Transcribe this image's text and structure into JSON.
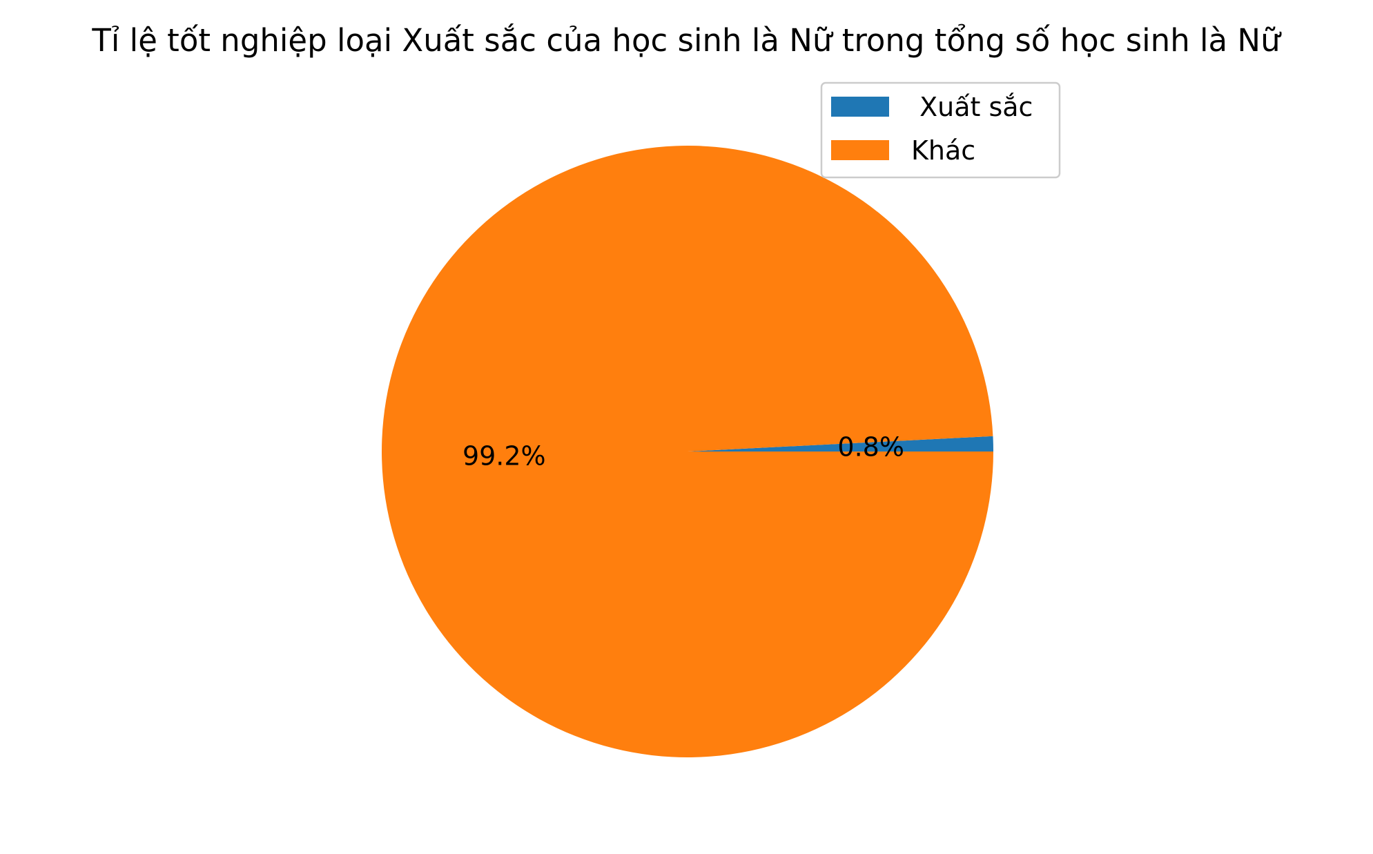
{
  "chart_data": {
    "type": "pie",
    "title": "Tỉ lệ tốt nghiệp loại  Xuất sắc của học sinh là Nữ trong tổng số học sinh là Nữ",
    "labels": [
      " Xuất sắc",
      "Khác"
    ],
    "values": [
      0.8,
      99.2
    ],
    "value_labels": [
      "0.8%",
      "99.2%"
    ],
    "colors": [
      "#1f77b4",
      "#ff7f0e"
    ],
    "start_angle_deg": 0,
    "direction": "counterclockwise",
    "legend_position": "top-right"
  }
}
